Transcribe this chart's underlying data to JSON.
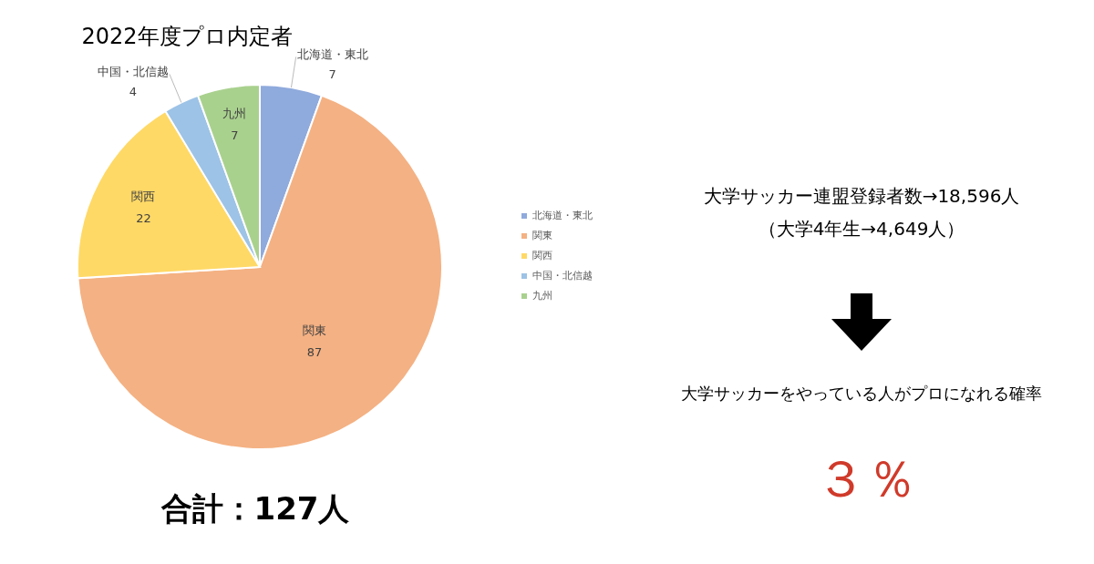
{
  "chart_data": {
    "type": "pie",
    "title": "2022年度プロ内定者",
    "categories": [
      "北海道・東北",
      "関東",
      "関西",
      "中国・北信越",
      "九州"
    ],
    "values": [
      7,
      87,
      22,
      4,
      7
    ],
    "colors": [
      "#8faadc",
      "#f4b183",
      "#ffd966",
      "#9dc3e6",
      "#a9d18e"
    ],
    "data_labels": true,
    "legend": "right",
    "annotations": [
      "合計：127人",
      "大学サッカー連盟登録者数→18,596人",
      "（大学4年生→4,649人）",
      "大学サッカーをやっている人がプロになれる確率",
      "３％"
    ]
  }
}
